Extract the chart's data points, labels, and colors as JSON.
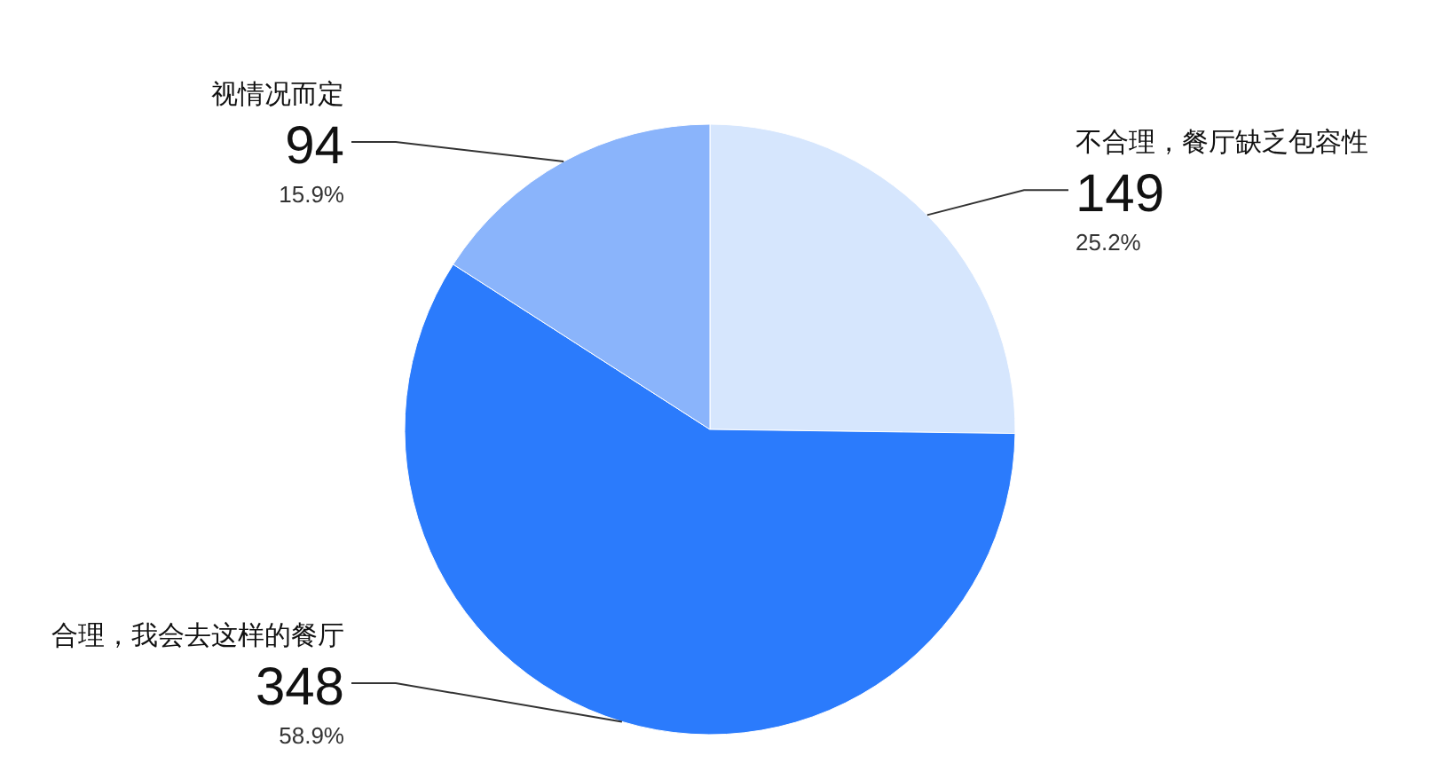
{
  "chart_data": {
    "type": "pie",
    "categories": [
      "不合理，餐厅缺乏包容性",
      "合理，我会去这样的餐厅",
      "视情况而定"
    ],
    "values": [
      149,
      348,
      94
    ],
    "colors": [
      "#d6e6fd",
      "#2b7bfc",
      "#8ab4fb"
    ],
    "data_labels": true,
    "annotations": [
      "25.2%",
      "58.9%",
      "15.9%"
    ]
  }
}
